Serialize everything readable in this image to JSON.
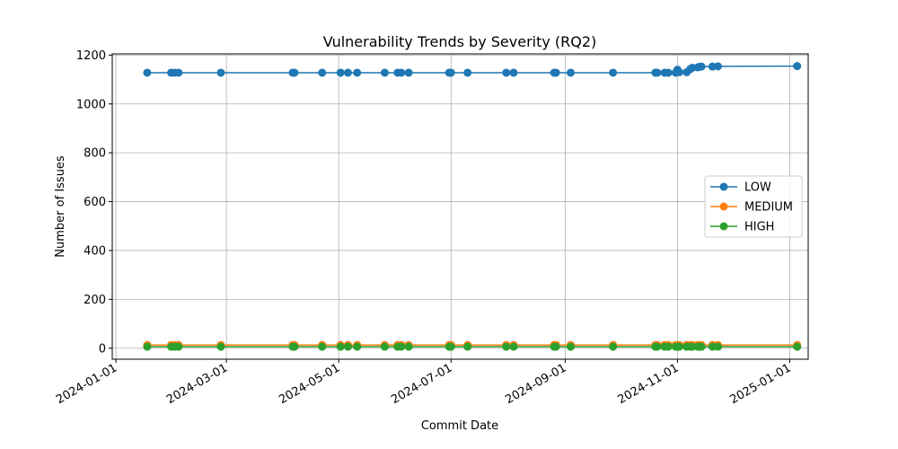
{
  "chart_data": {
    "type": "line",
    "title": "Vulnerability Trends by Severity (RQ2)",
    "xlabel": "Commit Date",
    "ylabel": "Number of Issues",
    "xlim": [
      "2023-12-30",
      "2025-01-11"
    ],
    "ylim": [
      -45,
      1205
    ],
    "grid": true,
    "legend_position": "center-right",
    "x_ticks": [
      "2024-01-01",
      "2024-03-01",
      "2024-05-01",
      "2024-07-01",
      "2024-09-01",
      "2024-11-01",
      "2025-01-01"
    ],
    "y_ticks": [
      0,
      200,
      400,
      600,
      800,
      1000,
      1200
    ],
    "x": [
      "2024-01-18",
      "2024-01-31",
      "2024-02-02",
      "2024-02-04",
      "2024-02-27",
      "2024-04-06",
      "2024-04-07",
      "2024-04-22",
      "2024-05-02",
      "2024-05-06",
      "2024-05-11",
      "2024-05-26",
      "2024-06-02",
      "2024-06-04",
      "2024-06-08",
      "2024-06-30",
      "2024-07-01",
      "2024-07-10",
      "2024-07-31",
      "2024-08-04",
      "2024-08-26",
      "2024-08-27",
      "2024-09-04",
      "2024-09-27",
      "2024-10-20",
      "2024-10-21",
      "2024-10-25",
      "2024-10-27",
      "2024-10-31",
      "2024-11-01",
      "2024-11-02",
      "2024-11-06",
      "2024-11-08",
      "2024-11-09",
      "2024-11-12",
      "2024-11-13",
      "2024-11-14",
      "2024-11-20",
      "2024-11-23",
      "2025-01-05"
    ],
    "series": [
      {
        "name": "LOW",
        "color": "#1f77b4",
        "values": [
          1128,
          1128,
          1128,
          1128,
          1128,
          1128,
          1128,
          1128,
          1128,
          1128,
          1128,
          1128,
          1128,
          1128,
          1128,
          1128,
          1128,
          1128,
          1128,
          1128,
          1128,
          1128,
          1128,
          1128,
          1128,
          1128,
          1128,
          1128,
          1128,
          1140,
          1130,
          1130,
          1143,
          1148,
          1150,
          1152,
          1153,
          1153,
          1154,
          1155
        ]
      },
      {
        "name": "MEDIUM",
        "color": "#ff7f0e",
        "values": [
          13,
          13,
          13,
          13,
          13,
          13,
          13,
          13,
          13,
          13,
          13,
          13,
          13,
          13,
          13,
          13,
          13,
          13,
          13,
          13,
          13,
          13,
          13,
          13,
          13,
          13,
          13,
          13,
          13,
          13,
          13,
          13,
          13,
          13,
          13,
          13,
          13,
          13,
          13,
          13
        ]
      },
      {
        "name": "HIGH",
        "color": "#2ca02c",
        "values": [
          6,
          6,
          6,
          6,
          6,
          6,
          6,
          6,
          6,
          6,
          6,
          6,
          6,
          6,
          6,
          6,
          6,
          6,
          6,
          6,
          6,
          6,
          6,
          6,
          6,
          6,
          6,
          6,
          6,
          6,
          6,
          6,
          6,
          6,
          6,
          6,
          6,
          6,
          6,
          6
        ]
      }
    ]
  }
}
